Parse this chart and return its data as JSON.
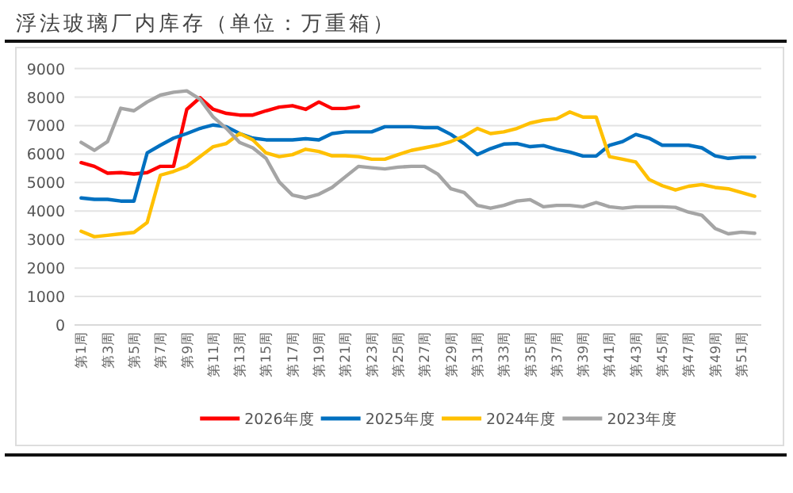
{
  "chart_data": {
    "type": "line",
    "title": "浮法玻璃厂内库存（单位：万重箱）",
    "categories": [
      "第1周",
      null,
      "第3周",
      null,
      "第5周",
      null,
      "第7周",
      null,
      "第9周",
      null,
      "第11周",
      null,
      "第13周",
      null,
      "第15周",
      null,
      "第17周",
      null,
      "第19周",
      null,
      "第21周",
      null,
      "第23周",
      null,
      "第25周",
      null,
      "第27周",
      null,
      "第29周",
      null,
      "第31周",
      null,
      "第33周",
      null,
      "第35周",
      null,
      "第37周",
      null,
      "第39周",
      null,
      "第41周",
      null,
      "第43周",
      null,
      "第45周",
      null,
      "第47周",
      null,
      "第49周",
      null,
      "第51周",
      null
    ],
    "series": [
      {
        "name": "2026年度",
        "color": "#ff0000",
        "values": [
          5700,
          5570,
          5330,
          5350,
          5300,
          5350,
          5570,
          5570,
          7570,
          7980,
          7570,
          7430,
          7370,
          7370,
          7520,
          7650,
          7700,
          7570,
          7830,
          7600,
          7600,
          7670,
          null,
          null,
          null,
          null,
          null,
          null,
          null,
          null,
          null,
          null,
          null,
          null,
          null,
          null,
          null,
          null,
          null,
          null,
          null,
          null,
          null,
          null,
          null,
          null,
          null,
          null,
          null,
          null,
          null,
          null
        ]
      },
      {
        "name": "2025年度",
        "color": "#0070c0",
        "values": [
          4460,
          4410,
          4410,
          4350,
          4350,
          6040,
          6310,
          6560,
          6720,
          6900,
          7020,
          6960,
          6720,
          6560,
          6500,
          6500,
          6500,
          6540,
          6500,
          6720,
          6780,
          6780,
          6780,
          6960,
          6960,
          6960,
          6930,
          6930,
          6690,
          6370,
          5980,
          6190,
          6350,
          6370,
          6260,
          6300,
          6170,
          6070,
          5930,
          5930,
          6310,
          6440,
          6690,
          6560,
          6310,
          6310,
          6310,
          6220,
          5940,
          5850,
          5890,
          5890
        ]
      },
      {
        "name": "2024年度",
        "color": "#ffc000",
        "values": [
          3290,
          3100,
          3150,
          3200,
          3250,
          3600,
          5260,
          5390,
          5570,
          5910,
          6260,
          6370,
          6720,
          6500,
          6040,
          5910,
          5980,
          6170,
          6090,
          5940,
          5940,
          5910,
          5820,
          5820,
          5980,
          6130,
          6220,
          6310,
          6440,
          6630,
          6900,
          6720,
          6780,
          6900,
          7090,
          7190,
          7240,
          7480,
          7300,
          7300,
          5910,
          5820,
          5720,
          5110,
          4890,
          4740,
          4870,
          4930,
          4830,
          4780,
          4650,
          4520
        ]
      },
      {
        "name": "2023年度",
        "color": "#a5a5a5",
        "values": [
          6410,
          6130,
          6440,
          7610,
          7520,
          7830,
          8070,
          8170,
          8220,
          7930,
          7300,
          6900,
          6410,
          6220,
          5850,
          5020,
          4560,
          4460,
          4590,
          4830,
          5200,
          5570,
          5520,
          5480,
          5540,
          5570,
          5570,
          5300,
          4780,
          4650,
          4200,
          4100,
          4200,
          4350,
          4400,
          4150,
          4200,
          4200,
          4150,
          4300,
          4150,
          4100,
          4150,
          4150,
          4150,
          4130,
          3960,
          3850,
          3390,
          3200,
          3260,
          3220
        ]
      }
    ],
    "ylim": [
      0,
      9000
    ],
    "yticks": [
      0,
      1000,
      2000,
      3000,
      4000,
      5000,
      6000,
      7000,
      8000,
      9000
    ],
    "grid": "y",
    "legend": "bottom"
  }
}
